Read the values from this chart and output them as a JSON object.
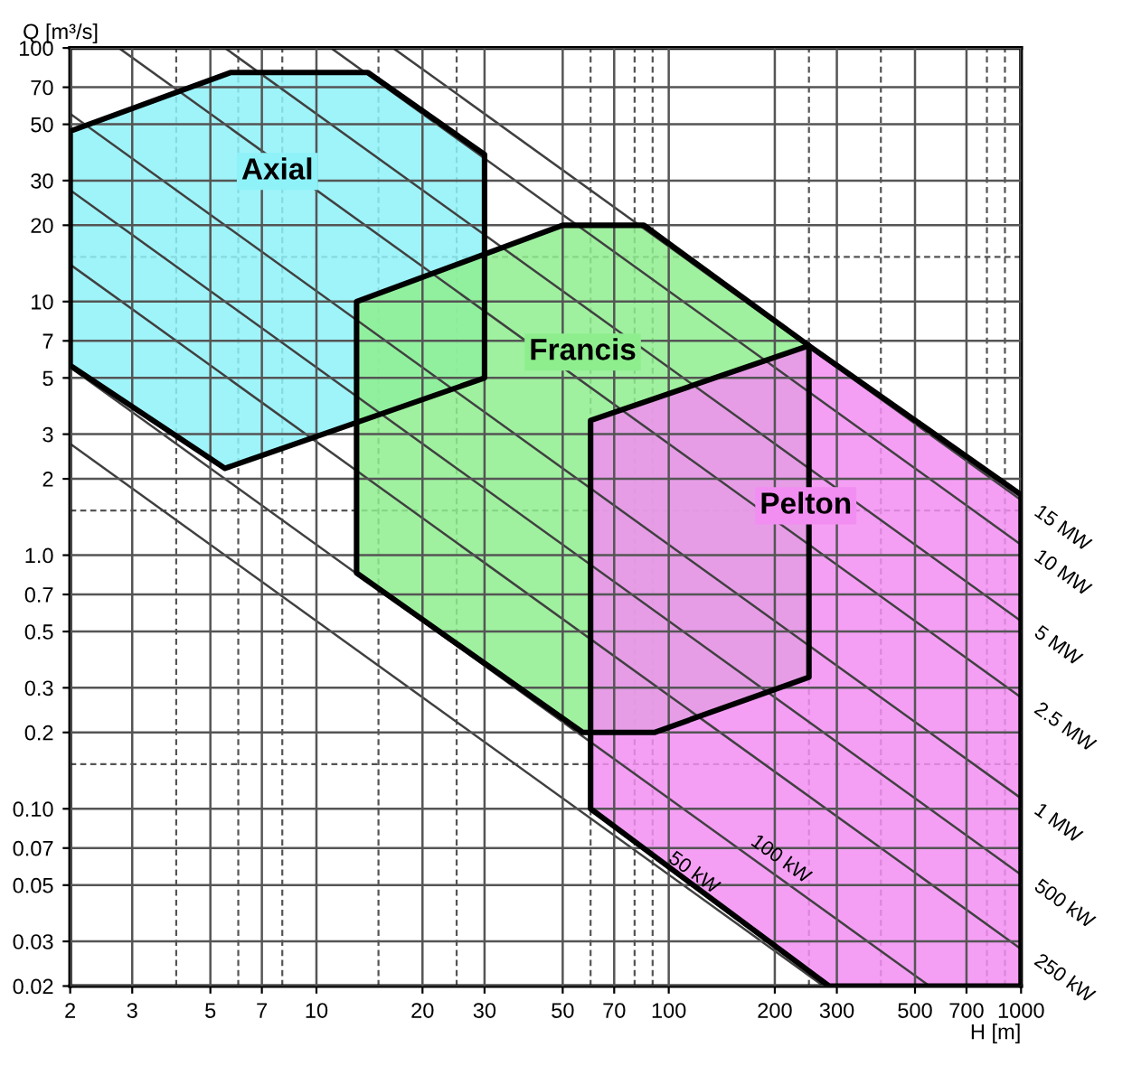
{
  "chart_data": {
    "type": "area",
    "xlabel": "H [m]",
    "ylabel": "Q [m³/s]",
    "log": "xy",
    "grid": true,
    "legend": false,
    "xlim": [
      2,
      1000
    ],
    "ylim": [
      0.02,
      100
    ],
    "xticks": [
      2,
      3,
      5,
      7,
      10,
      20,
      30,
      50,
      70,
      100,
      200,
      300,
      500,
      700,
      1000
    ],
    "yticks": [
      {
        "value": 0.02,
        "label": "0.02"
      },
      {
        "value": 0.03,
        "label": "0.03"
      },
      {
        "value": 0.05,
        "label": "0.05"
      },
      {
        "value": 0.07,
        "label": "0.07"
      },
      {
        "value": 0.1,
        "label": "0.10"
      },
      0.2,
      0.3,
      0.5,
      0.7,
      {
        "value": 1,
        "label": "1.0"
      },
      2,
      3,
      5,
      7,
      10,
      20,
      30,
      50,
      70,
      100
    ],
    "ref_lines": [
      {
        "axis": "x",
        "value": 4,
        "line_style": "dashed"
      },
      {
        "axis": "x",
        "value": 6,
        "line_style": "dashed"
      },
      {
        "axis": "x",
        "value": 8,
        "line_style": "dashed"
      },
      {
        "axis": "x",
        "value": 15,
        "line_style": "dashed"
      },
      {
        "axis": "x",
        "value": 25,
        "line_style": "dashed"
      },
      {
        "axis": "x",
        "value": 60,
        "line_style": "dashed"
      },
      {
        "axis": "x",
        "value": 80,
        "line_style": "dashed"
      },
      {
        "axis": "x",
        "value": 90,
        "line_style": "dashed"
      },
      {
        "axis": "x",
        "value": 250,
        "line_style": "dashed"
      },
      {
        "axis": "x",
        "value": 400,
        "line_style": "dashed"
      },
      {
        "axis": "x",
        "value": 800,
        "line_style": "dashed"
      },
      {
        "axis": "x",
        "value": 900,
        "line_style": "dashed"
      },
      {
        "axis": "y",
        "value": 0.15,
        "line_style": "dashed"
      },
      {
        "axis": "y",
        "value": 1.5,
        "line_style": "dashed"
      },
      {
        "axis": "y",
        "value": 15,
        "line_style": "dashed"
      }
    ],
    "series": [
      {
        "name": "Axial",
        "color": "#8ef2f8",
        "x": [
          2,
          2,
          5.7,
          14,
          30,
          30,
          5.5
        ],
        "values": [
          5.6,
          47,
          80,
          80,
          38,
          5,
          2.2
        ]
      },
      {
        "name": "Francis",
        "color": "#8eee8e",
        "x": [
          13,
          13,
          50,
          85,
          250,
          250,
          91,
          57
        ],
        "values": [
          0.85,
          10,
          20,
          20,
          6.7,
          0.33,
          0.2,
          0.2
        ]
      },
      {
        "name": "Pelton",
        "color": "#f28ef2",
        "x": [
          60,
          60,
          250,
          1000,
          1000,
          285
        ],
        "values": [
          0.1,
          3.4,
          6.7,
          1.73,
          0.02,
          0.02
        ]
      },
      {
        "name": "50 kW",
        "type": "line",
        "color": "#404040",
        "x": [
          2,
          275
        ],
        "values": [
          2.75,
          0.02
        ]
      },
      {
        "name": "100 kW",
        "type": "line",
        "color": "#404040",
        "x": [
          2,
          550
        ],
        "values": [
          5.5,
          0.02
        ]
      },
      {
        "name": "250 kW",
        "type": "line",
        "color": "#404040",
        "x": [
          2,
          1000
        ],
        "values": [
          14,
          0.028
        ]
      },
      {
        "name": "500 kW",
        "type": "line",
        "color": "#404040",
        "x": [
          2,
          1000
        ],
        "values": [
          27.5,
          0.055
        ]
      },
      {
        "name": "1 MW",
        "type": "line",
        "color": "#404040",
        "x": [
          2,
          1000
        ],
        "values": [
          55,
          0.11
        ]
      },
      {
        "name": "2.5 MW",
        "type": "line",
        "color": "#404040",
        "x": [
          2.75,
          1000
        ],
        "values": [
          100,
          0.275
        ]
      },
      {
        "name": "5 MW",
        "type": "line",
        "color": "#404040",
        "x": [
          5.5,
          1000
        ],
        "values": [
          100,
          0.55
        ]
      },
      {
        "name": "10 MW",
        "type": "line",
        "color": "#404040",
        "x": [
          11,
          1000
        ],
        "values": [
          100,
          1.1
        ]
      },
      {
        "name": "15 MW",
        "type": "line",
        "color": "#404040",
        "x": [
          16.5,
          1000
        ],
        "values": [
          100,
          1.65
        ]
      }
    ]
  }
}
